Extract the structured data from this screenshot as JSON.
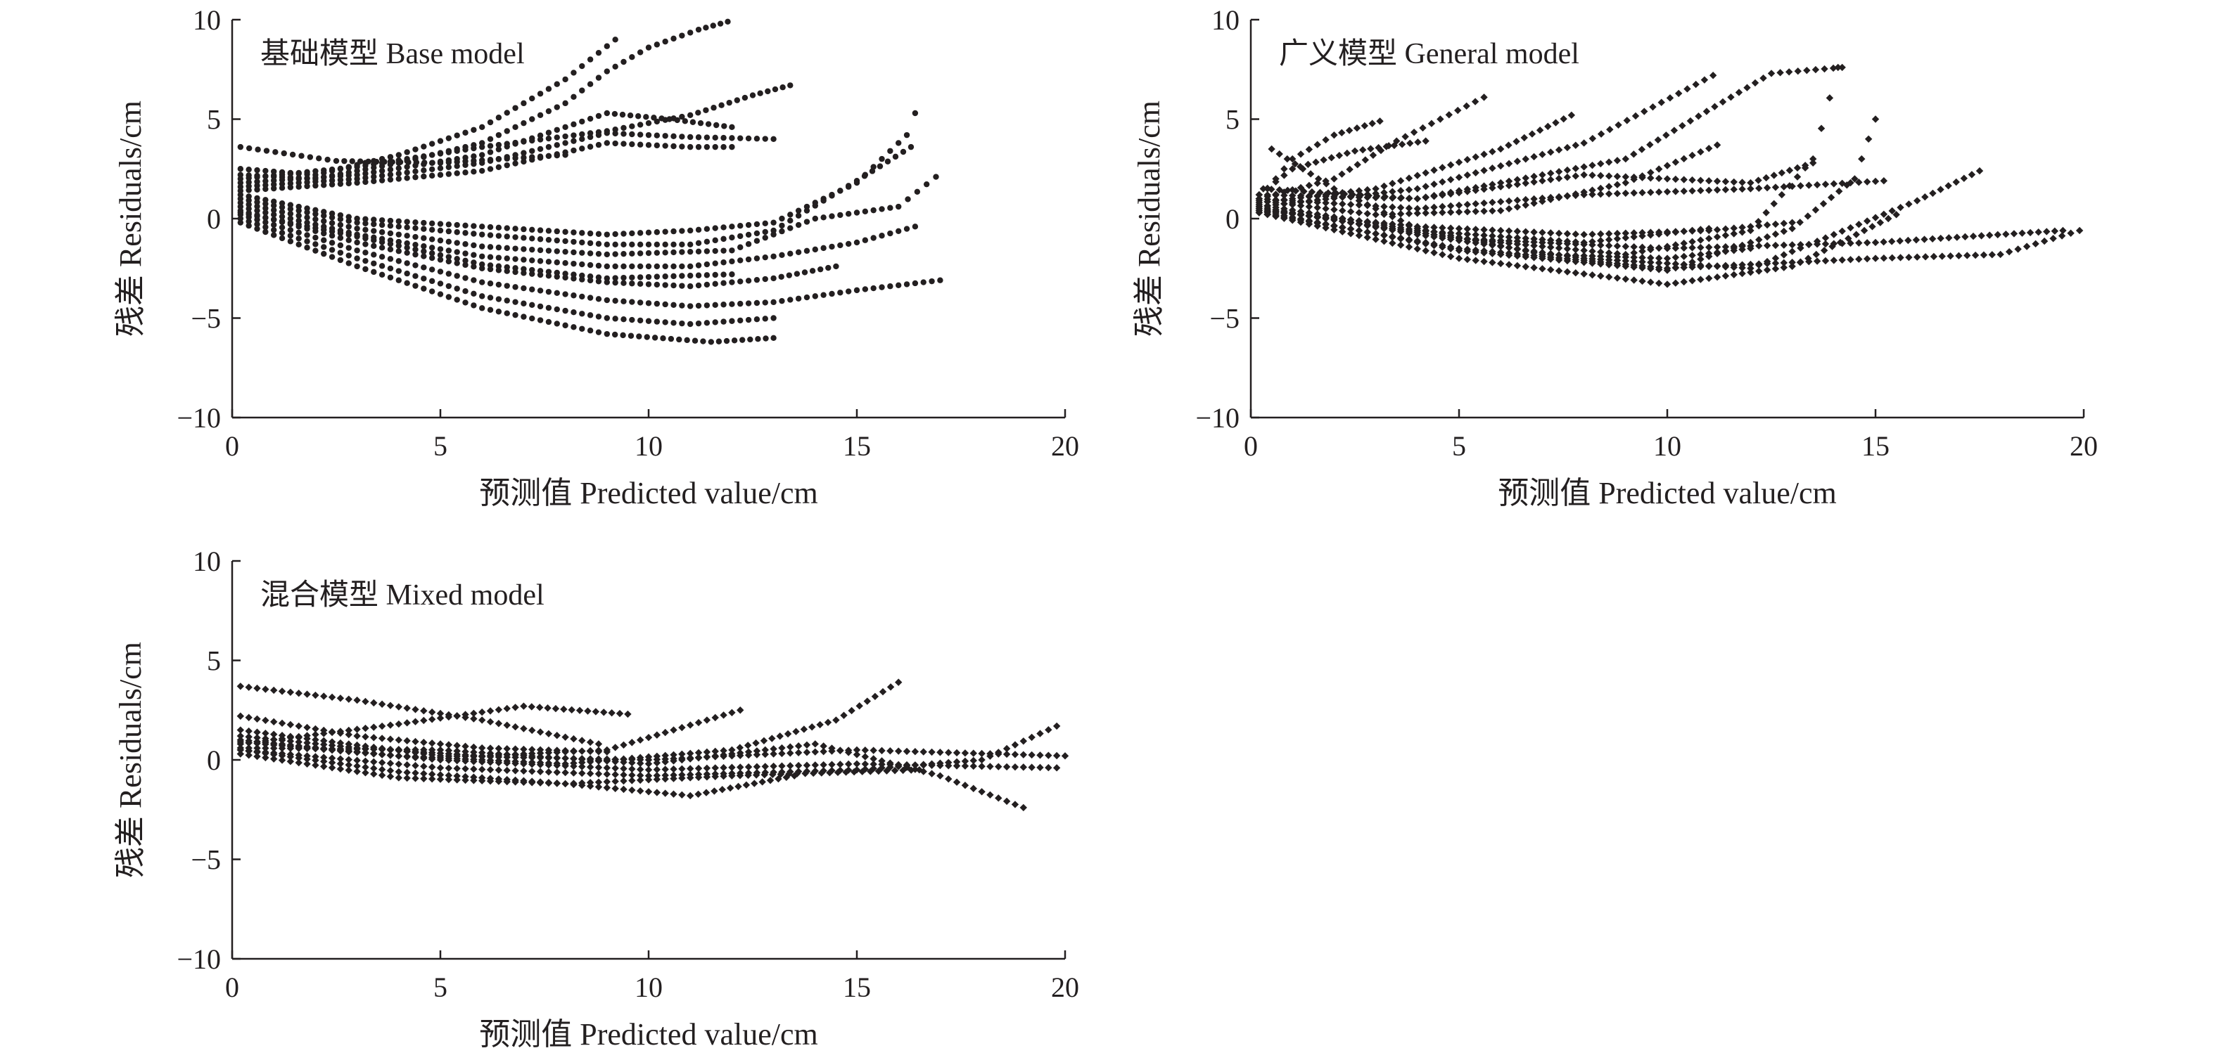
{
  "chart_data": [
    {
      "type": "scatter",
      "title": "基础模型 Base model",
      "xlabel": "预测值 Predicted value/cm",
      "ylabel": "残差 Residuals/cm",
      "xlim": [
        0,
        20
      ],
      "ylim": [
        -10,
        10
      ],
      "xticks": [
        "0",
        "5",
        "10",
        "15",
        "20"
      ],
      "yticks": [
        "10",
        "5",
        "0",
        "−5",
        "−10"
      ],
      "marker_color": "#231f20",
      "series_type": "dotted-curves",
      "grid": false,
      "series": [
        {
          "x": [
            0.2,
            2,
            4,
            6,
            8,
            9.2
          ],
          "y": [
            2.5,
            2.2,
            3.2,
            4.6,
            7.0,
            9.0
          ]
        },
        {
          "x": [
            0.2,
            2,
            4,
            6,
            8,
            9,
            10,
            11.2,
            11.9
          ],
          "y": [
            2.2,
            2.0,
            2.8,
            3.8,
            5.8,
            7.4,
            8.6,
            9.5,
            9.9
          ]
        },
        {
          "x": [
            0.2,
            3,
            6,
            9,
            11,
            12.5,
            13.4
          ],
          "y": [
            2.0,
            2.6,
            3.6,
            4.4,
            5.2,
            6.2,
            6.7
          ]
        },
        {
          "x": [
            0.2,
            3,
            6,
            9,
            10.5,
            12
          ],
          "y": [
            1.8,
            2.2,
            3.2,
            5.3,
            5.0,
            4.6
          ]
        },
        {
          "x": [
            0.2,
            3,
            6,
            9,
            11,
            13
          ],
          "y": [
            1.6,
            2.0,
            2.8,
            4.3,
            4.1,
            4.0
          ]
        },
        {
          "x": [
            0.2,
            3,
            6,
            9,
            11,
            12
          ],
          "y": [
            1.4,
            1.8,
            2.4,
            3.8,
            3.6,
            3.6
          ]
        },
        {
          "x": [
            0.2,
            3,
            6,
            9,
            11,
            13,
            15,
            16.2,
            16.4
          ],
          "y": [
            1.2,
            0.0,
            -0.4,
            -0.8,
            -0.6,
            -0.2,
            1.8,
            4.2,
            5.3
          ]
        },
        {
          "x": [
            0.2,
            3,
            6,
            9,
            11,
            13,
            15,
            16.3
          ],
          "y": [
            1.0,
            -0.2,
            -0.8,
            -1.3,
            -1.3,
            -0.6,
            1.9,
            3.6
          ]
        },
        {
          "x": [
            0.2,
            3,
            6,
            9,
            12,
            14,
            16,
            16.9
          ],
          "y": [
            0.8,
            -0.5,
            -1.4,
            -1.8,
            -1.6,
            0.0,
            0.6,
            2.1
          ]
        },
        {
          "x": [
            0.2,
            3,
            6,
            9,
            11,
            13,
            15,
            16.4
          ],
          "y": [
            0.6,
            -0.8,
            -1.9,
            -2.4,
            -2.4,
            -1.9,
            -1.2,
            -0.4
          ]
        },
        {
          "x": [
            0.2,
            3,
            6,
            9,
            11,
            13,
            14.5
          ],
          "y": [
            0.4,
            -1.2,
            -2.5,
            -3.2,
            -3.4,
            -3.0,
            -2.4
          ]
        },
        {
          "x": [
            0.2,
            3,
            6,
            9,
            11,
            13,
            15,
            17
          ],
          "y": [
            0.2,
            -1.6,
            -3.2,
            -4.1,
            -4.4,
            -4.2,
            -3.6,
            -3.1
          ]
        },
        {
          "x": [
            0.2,
            3,
            6,
            9,
            11,
            13
          ],
          "y": [
            0.0,
            -2.0,
            -3.9,
            -5.0,
            -5.3,
            -5.0
          ]
        },
        {
          "x": [
            0.2,
            3,
            6,
            9,
            11.5,
            13
          ],
          "y": [
            -0.2,
            -2.4,
            -4.5,
            -5.8,
            -6.2,
            -6.0
          ]
        },
        {
          "x": [
            0.2,
            2.5,
            5,
            8
          ],
          "y": [
            3.6,
            2.9,
            2.8,
            3.2
          ]
        },
        {
          "x": [
            0.2,
            3,
            6,
            9,
            12
          ],
          "y": [
            0.3,
            -0.9,
            -2.3,
            -3.0,
            -2.8
          ]
        }
      ]
    },
    {
      "type": "scatter",
      "title": "广义模型 General model",
      "xlabel": "预测值 Predicted value/cm",
      "ylabel": "残差 Residuals/cm",
      "xlim": [
        0,
        20
      ],
      "ylim": [
        -10,
        10
      ],
      "xticks": [
        "0",
        "5",
        "10",
        "15",
        "20"
      ],
      "yticks": [
        "10",
        "5",
        "0",
        "−5",
        "−10"
      ],
      "marker_color": "#231f20",
      "series_type": "dotted-curves",
      "grid": false,
      "series": [
        {
          "x": [
            0.2,
            1,
            2,
            3.1
          ],
          "y": [
            1.0,
            3.0,
            4.2,
            4.9
          ]
        },
        {
          "x": [
            0.2,
            1,
            2.5,
            4.2
          ],
          "y": [
            1.2,
            2.5,
            3.4,
            3.9
          ]
        },
        {
          "x": [
            0.2,
            2,
            3.5,
            5.6
          ],
          "y": [
            1.0,
            2.0,
            3.9,
            6.1
          ]
        },
        {
          "x": [
            0.2,
            3,
            6,
            7.7
          ],
          "y": [
            0.8,
            1.5,
            3.5,
            5.2
          ]
        },
        {
          "x": [
            0.2,
            4,
            8,
            11.1
          ],
          "y": [
            0.6,
            1.5,
            3.8,
            7.2
          ]
        },
        {
          "x": [
            0.3,
            4,
            9,
            12.5,
            14.2
          ],
          "y": [
            1.5,
            1.0,
            3.0,
            7.3,
            7.6
          ]
        },
        {
          "x": [
            0.2,
            5,
            9,
            12,
            13.5,
            14.1
          ],
          "y": [
            0.5,
            -1.0,
            -1.8,
            -0.6,
            3.0,
            7.6
          ]
        },
        {
          "x": [
            0.2,
            5,
            10,
            13,
            14.5,
            15
          ],
          "y": [
            0.4,
            -1.6,
            -2.6,
            -0.5,
            2.0,
            5.0
          ]
        },
        {
          "x": [
            0.2,
            5,
            10,
            13,
            15.5
          ],
          "y": [
            0.3,
            -2.0,
            -3.3,
            -2.4,
            0.2
          ]
        },
        {
          "x": [
            0.2,
            4,
            8,
            12,
            16,
            17.5
          ],
          "y": [
            0.6,
            -0.8,
            -2.0,
            -2.5,
            0.9,
            2.4
          ]
        },
        {
          "x": [
            0.2,
            5,
            10,
            15,
            18,
            19.9
          ],
          "y": [
            0.3,
            -1.5,
            -2.5,
            -2.0,
            -1.8,
            -0.6
          ]
        },
        {
          "x": [
            0.2,
            5,
            10,
            15,
            19.5
          ],
          "y": [
            0.5,
            -1.0,
            -1.5,
            -1.2,
            -0.6
          ]
        },
        {
          "x": [
            0.2,
            4,
            8,
            12,
            15.2
          ],
          "y": [
            1.0,
            0.5,
            1.2,
            1.5,
            1.9
          ]
        },
        {
          "x": [
            0.2,
            4,
            8,
            12,
            13.5
          ],
          "y": [
            1.2,
            1.0,
            2.2,
            1.8,
            2.8
          ]
        },
        {
          "x": [
            0.5,
            2,
            4,
            7,
            10,
            12
          ],
          "y": [
            3.5,
            1.5,
            -0.5,
            -1.8,
            -2.0,
            -1.5
          ]
        },
        {
          "x": [
            0.2,
            4,
            8,
            11
          ],
          "y": [
            0.7,
            -0.6,
            -1.2,
            -0.5
          ]
        },
        {
          "x": [
            0.2,
            3,
            6,
            9,
            11.2
          ],
          "y": [
            0.9,
            0.2,
            0.4,
            1.8,
            3.7
          ]
        },
        {
          "x": [
            0.2,
            4,
            8,
            11,
            13
          ],
          "y": [
            0.4,
            -0.4,
            -0.8,
            -0.6,
            -0.2
          ]
        }
      ]
    },
    {
      "type": "scatter",
      "title": "混合模型 Mixed model",
      "xlabel": "预测值 Predicted value/cm",
      "ylabel": "残差 Residuals/cm",
      "xlim": [
        0,
        20
      ],
      "ylim": [
        -10,
        10
      ],
      "xticks": [
        "0",
        "5",
        "10",
        "15",
        "20"
      ],
      "yticks": [
        "10",
        "5",
        "0",
        "−5",
        "−10"
      ],
      "marker_color": "#231f20",
      "series_type": "dotted-curves",
      "grid": false,
      "series": [
        {
          "x": [
            0.2,
            3,
            6,
            8.8
          ],
          "y": [
            3.7,
            3.0,
            2.0,
            0.8
          ]
        },
        {
          "x": [
            0.2,
            3,
            6,
            9,
            12.2
          ],
          "y": [
            1.2,
            0.6,
            0.2,
            0.5,
            2.5
          ]
        },
        {
          "x": [
            0.2,
            4,
            8,
            12,
            14.5,
            16
          ],
          "y": [
            1.0,
            0.2,
            -0.2,
            0.5,
            2.0,
            3.9
          ]
        },
        {
          "x": [
            0.2,
            4,
            7,
            9.5
          ],
          "y": [
            0.8,
            1.8,
            2.7,
            2.3
          ]
        },
        {
          "x": [
            0.2,
            4,
            8,
            11,
            13.5
          ],
          "y": [
            0.5,
            -0.6,
            -1.2,
            -1.8,
            -0.8
          ]
        },
        {
          "x": [
            0.2,
            5,
            10,
            14,
            17,
            19
          ],
          "y": [
            0.6,
            0.5,
            -0.2,
            0.8,
            -0.8,
            -2.4
          ]
        },
        {
          "x": [
            0.2,
            5,
            10,
            15,
            18,
            19.8
          ],
          "y": [
            0.5,
            -0.4,
            -0.8,
            -0.5,
            0.0,
            1.7
          ]
        },
        {
          "x": [
            0.2,
            5,
            10,
            15,
            20
          ],
          "y": [
            1.5,
            0.2,
            0.0,
            0.5,
            0.2
          ]
        },
        {
          "x": [
            0.2,
            5,
            10,
            15,
            19.8
          ],
          "y": [
            0.9,
            0.0,
            -0.5,
            -0.2,
            -0.4
          ]
        },
        {
          "x": [
            0.2,
            4,
            8,
            12,
            16.5
          ],
          "y": [
            0.3,
            -0.9,
            -1.2,
            -0.8,
            -0.5
          ]
        },
        {
          "x": [
            0.2,
            3,
            6,
            9
          ],
          "y": [
            2.2,
            1.2,
            0.6,
            0.4
          ]
        }
      ]
    }
  ]
}
